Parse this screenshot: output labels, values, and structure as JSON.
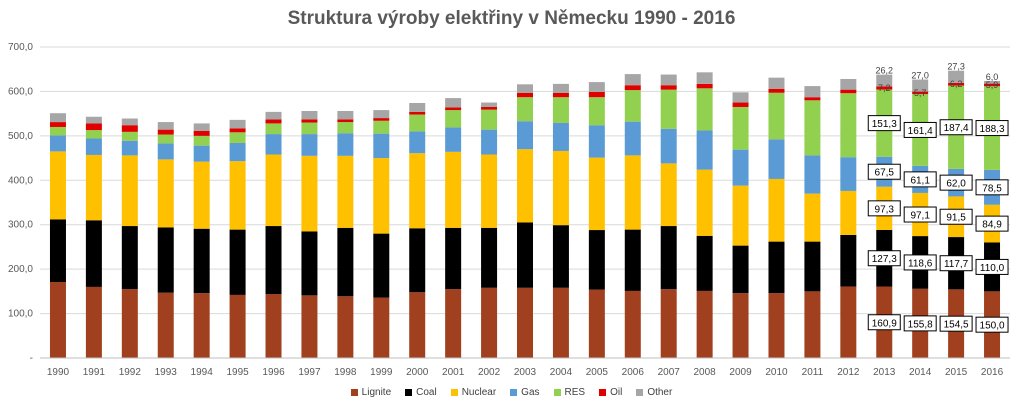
{
  "chart_data": {
    "type": "bar",
    "stacked": true,
    "title": "Struktura výroby elektřiny v Německu 1990 - 2016",
    "xlabel": "",
    "ylabel": "",
    "ylim": [
      0,
      700
    ],
    "yticks": [
      "-",
      "100,0",
      "200,0",
      "300,0",
      "400,0",
      "500,0",
      "600,0",
      "700,0"
    ],
    "grid": true,
    "legend_position": "bottom",
    "categories": [
      "1990",
      "1991",
      "1992",
      "1993",
      "1994",
      "1995",
      "1996",
      "1997",
      "1998",
      "1999",
      "2000",
      "2001",
      "2002",
      "2003",
      "2004",
      "2005",
      "2006",
      "2007",
      "2008",
      "2009",
      "2010",
      "2011",
      "2012",
      "2013",
      "2014",
      "2015",
      "2016"
    ],
    "series": [
      {
        "name": "Lignite",
        "color": "#A0401E",
        "values": [
          171,
          160,
          155,
          147,
          146,
          142,
          144,
          141,
          139,
          136,
          148,
          155,
          158,
          158,
          158,
          154,
          151,
          155,
          151,
          146,
          146,
          150,
          161,
          160.9,
          155.8,
          154.5,
          150.0
        ]
      },
      {
        "name": "Coal",
        "color": "#000000",
        "values": [
          141,
          150,
          142,
          147,
          145,
          147,
          153,
          144,
          154,
          144,
          144,
          138,
          135,
          147,
          141,
          134,
          138,
          142,
          124,
          107,
          116,
          112,
          116,
          127.3,
          118.6,
          117.7,
          110.0
        ]
      },
      {
        "name": "Nuclear",
        "color": "#FFC000",
        "values": [
          153,
          147,
          159,
          153,
          151,
          154,
          161,
          170,
          162,
          170,
          169,
          171,
          165,
          165,
          167,
          163,
          167,
          141,
          149,
          135,
          141,
          108,
          99,
          97.3,
          97.1,
          91.5,
          84.9
        ]
      },
      {
        "name": "Gas",
        "color": "#5B9BD5",
        "values": [
          36,
          37,
          33,
          36,
          36,
          41,
          46,
          49,
          51,
          55,
          49,
          55,
          56,
          63,
          63,
          73,
          76,
          78,
          88,
          81,
          89,
          86,
          76,
          67.5,
          61.1,
          62.0,
          78.5
        ]
      },
      {
        "name": "RES",
        "color": "#92D050",
        "values": [
          19,
          19,
          20,
          20,
          22,
          24,
          24,
          26,
          25,
          29,
          38,
          39,
          45,
          54,
          58,
          63,
          71,
          88,
          95,
          96,
          105,
          124,
          144,
          151.3,
          161.4,
          187.4,
          188.3
        ]
      },
      {
        "name": "Oil",
        "color": "#E00000",
        "values": [
          11,
          15,
          15,
          11,
          11,
          9,
          9,
          7,
          6,
          6,
          6,
          6,
          6,
          10,
          10,
          12,
          11,
          10,
          10,
          10,
          9,
          7,
          8,
          7.2,
          5.7,
          6.2,
          5.9
        ]
      },
      {
        "name": "Other",
        "color": "#A6A6A6",
        "values": [
          20,
          15,
          15,
          17,
          17,
          19,
          17,
          19,
          19,
          18,
          20,
          21,
          10,
          19,
          20,
          22,
          25,
          24,
          26,
          23,
          25,
          25,
          24,
          26.2,
          27.0,
          27.3,
          6.0
        ]
      }
    ],
    "data_labels": {
      "2013": {
        "Lignite": "160,9",
        "Coal": "127,3",
        "Nuclear": "97,3",
        "Gas": "67,5",
        "RES": "151,3",
        "Oil": "7,2",
        "Other": "26,2"
      },
      "2014": {
        "Lignite": "155,8",
        "Coal": "118,6",
        "Nuclear": "97,1",
        "Gas": "61,1",
        "RES": "161,4",
        "Oil": "5,7",
        "Other": "27,0"
      },
      "2015": {
        "Lignite": "154,5",
        "Coal": "117,7",
        "Nuclear": "91,5",
        "Gas": "62,0",
        "RES": "187,4",
        "Oil": "6,2",
        "Other": "27,3"
      },
      "2016": {
        "Lignite": "150,0",
        "Coal": "110,0",
        "Nuclear": "84,9",
        "Gas": "78,5",
        "RES": "188,3",
        "Oil": "5,9",
        "Other": "6,0"
      }
    }
  }
}
